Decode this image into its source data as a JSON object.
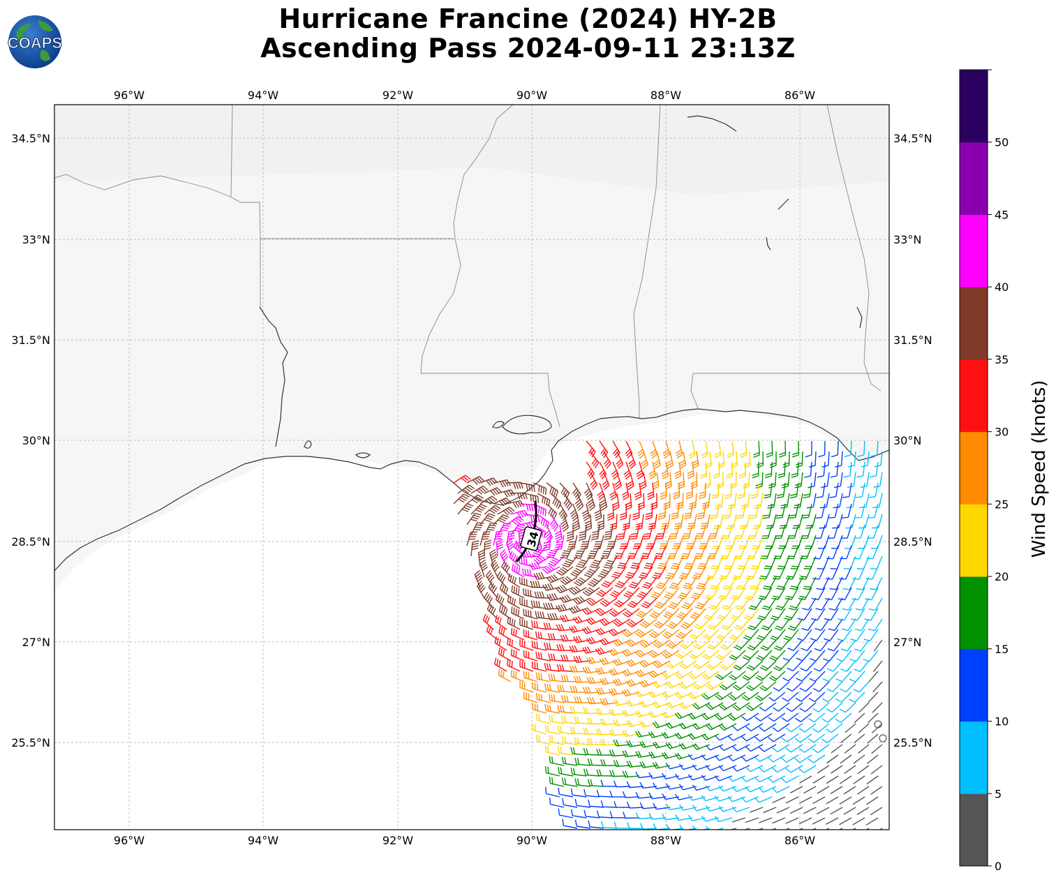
{
  "title": {
    "line1": "Hurricane Francine (2024) HY-2B",
    "line2": "Ascending Pass 2024-09-11 23:13Z"
  },
  "logo": {
    "text": "COAPS",
    "icon": "globe-icon"
  },
  "map": {
    "lon_range": [
      -97.1,
      -84.7
    ],
    "lat_range": [
      24.2,
      35.0
    ],
    "lon_ticks": [
      "96°W",
      "94°W",
      "92°W",
      "90°W",
      "88°W",
      "86°W"
    ],
    "lat_ticks": [
      "34.5°N",
      "33°N",
      "31.5°N",
      "30°N",
      "28.5°N",
      "27°N",
      "25.5°N"
    ],
    "contour_label": "34"
  },
  "colorbar": {
    "label": "Wind Speed (knots)",
    "ticks": [
      "0",
      "5",
      "10",
      "15",
      "20",
      "25",
      "30",
      "35",
      "40",
      "45",
      "50"
    ],
    "colors": [
      "#555555",
      "#00bfff",
      "#0040ff",
      "#009000",
      "#ffd700",
      "#ff8c00",
      "#ff1010",
      "#803a28",
      "#ff00ff",
      "#8a00b0",
      "#2a0060"
    ]
  }
}
